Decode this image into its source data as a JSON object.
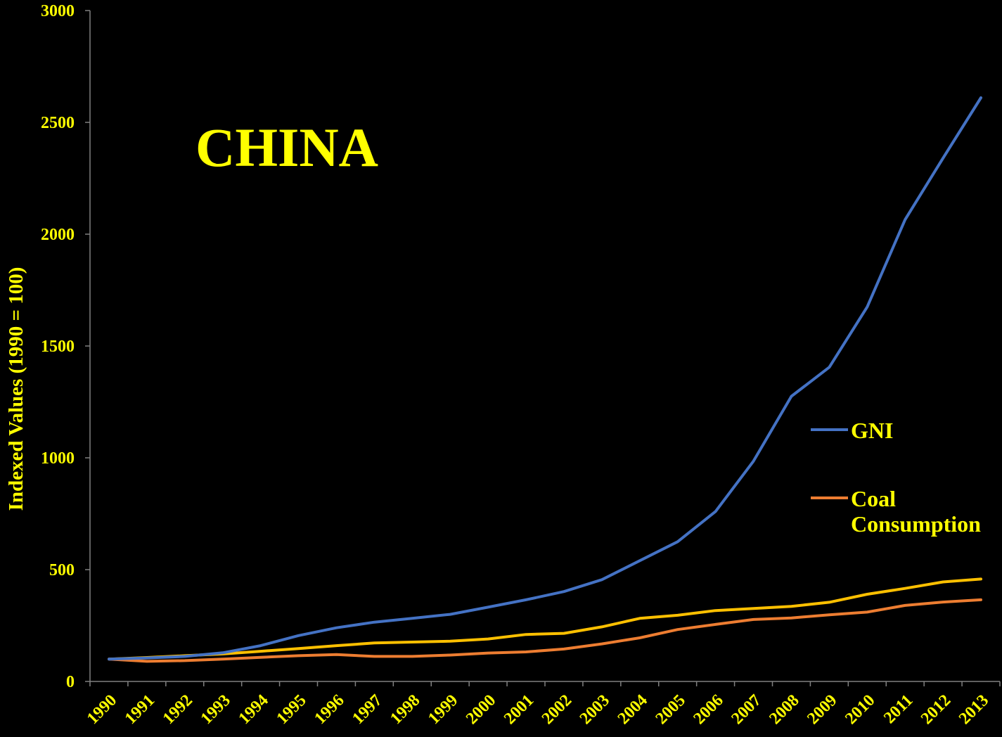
{
  "chart_data": {
    "type": "line",
    "title": "CHINA",
    "xlabel": "",
    "ylabel": "Indexed Values (1990 = 100)",
    "categories": [
      "1990",
      "1991",
      "1992",
      "1993",
      "1994",
      "1995",
      "1996",
      "1997",
      "1998",
      "1999",
      "2000",
      "2001",
      "2002",
      "2003",
      "2004",
      "2005",
      "2006",
      "2007",
      "2008",
      "2009",
      "2010",
      "2011",
      "2012",
      "2013"
    ],
    "yticks": [
      "0",
      "500",
      "1000",
      "1500",
      "2000",
      "2500",
      "3000"
    ],
    "ylim": [
      0,
      3000
    ],
    "grid": false,
    "legend_position": "right",
    "series": [
      {
        "name": "GNI",
        "color": "#4472C4",
        "values": [
          100,
          105,
          112,
          128,
          160,
          205,
          240,
          265,
          282,
          300,
          332,
          365,
          402,
          455,
          540,
          625,
          760,
          985,
          1275,
          1405,
          1675,
          2065,
          2340,
          2610
        ]
      },
      {
        "name": "Coal Consumption",
        "color": "#ED7D31",
        "values": [
          100,
          90,
          93,
          100,
          108,
          115,
          120,
          112,
          112,
          118,
          127,
          132,
          145,
          168,
          195,
          232,
          255,
          277,
          284,
          298,
          310,
          340,
          355,
          365
        ]
      },
      {
        "name": "",
        "color": "#FFC000",
        "values": [
          100,
          107,
          115,
          123,
          135,
          147,
          160,
          172,
          176,
          180,
          190,
          210,
          215,
          244,
          282,
          296,
          317,
          326,
          336,
          354,
          390,
          416,
          445,
          458
        ]
      }
    ]
  },
  "colors": {
    "background": "#000000",
    "text": "#FFFF00",
    "axis": "#808080"
  }
}
